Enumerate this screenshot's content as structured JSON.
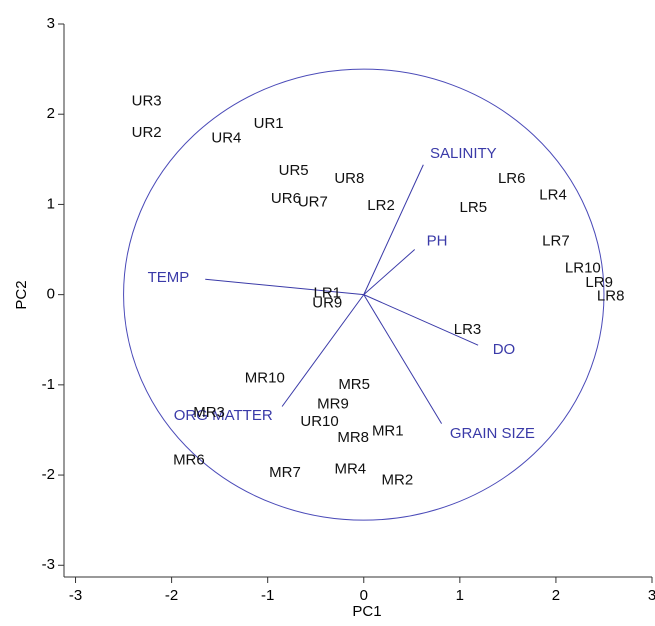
{
  "chart_data": {
    "type": "biplot",
    "xlabel": "PC1",
    "ylabel": "PC2",
    "xlim": [
      -3.12,
      3.0
    ],
    "ylim": [
      -3.13,
      3.0
    ],
    "xticks": [
      -3,
      -2,
      -1,
      0,
      1,
      2,
      3
    ],
    "yticks": [
      -3,
      -2,
      -1,
      0,
      1,
      2,
      3
    ],
    "point_color": "#111111",
    "vector_color": "#3a3aa8",
    "circle_color": "#4a4ab8",
    "circle_radius": 2.5,
    "points": [
      {
        "label": "UR3",
        "x": -2.26,
        "y": 2.14
      },
      {
        "label": "UR2",
        "x": -2.26,
        "y": 1.79
      },
      {
        "label": "UR4",
        "x": -1.43,
        "y": 1.73
      },
      {
        "label": "UR1",
        "x": -0.99,
        "y": 1.89
      },
      {
        "label": "UR5",
        "x": -0.73,
        "y": 1.37
      },
      {
        "label": "UR8",
        "x": -0.15,
        "y": 1.28
      },
      {
        "label": "UR6",
        "x": -0.81,
        "y": 1.06
      },
      {
        "label": "UR7",
        "x": -0.53,
        "y": 1.02
      },
      {
        "label": "LR2",
        "x": 0.18,
        "y": 0.98
      },
      {
        "label": "LR6",
        "x": 1.54,
        "y": 1.28
      },
      {
        "label": "LR4",
        "x": 1.97,
        "y": 1.1
      },
      {
        "label": "LR5",
        "x": 1.14,
        "y": 0.96
      },
      {
        "label": "LR7",
        "x": 2.0,
        "y": 0.59
      },
      {
        "label": "LR10",
        "x": 2.28,
        "y": 0.29
      },
      {
        "label": "LR9",
        "x": 2.45,
        "y": 0.13
      },
      {
        "label": "LR8",
        "x": 2.57,
        "y": -0.02
      },
      {
        "label": "LR1",
        "x": -0.38,
        "y": 0.01
      },
      {
        "label": "UR9",
        "x": -0.38,
        "y": -0.1
      },
      {
        "label": "LR3",
        "x": 1.08,
        "y": -0.39
      },
      {
        "label": "MR10",
        "x": -1.03,
        "y": -0.93
      },
      {
        "label": "MR5",
        "x": -0.1,
        "y": -1.0
      },
      {
        "label": "MR9",
        "x": -0.32,
        "y": -1.22
      },
      {
        "label": "MR3",
        "x": -1.61,
        "y": -1.31
      },
      {
        "label": "UR10",
        "x": -0.46,
        "y": -1.41
      },
      {
        "label": "MR8",
        "x": -0.11,
        "y": -1.59
      },
      {
        "label": "MR1",
        "x": 0.25,
        "y": -1.52
      },
      {
        "label": "MR6",
        "x": -1.82,
        "y": -1.84
      },
      {
        "label": "MR7",
        "x": -0.82,
        "y": -1.98
      },
      {
        "label": "MR4",
        "x": -0.14,
        "y": -1.94
      },
      {
        "label": "MR2",
        "x": 0.35,
        "y": -2.06
      }
    ],
    "vectors": [
      {
        "label": "SALINITY",
        "x": 0.62,
        "y": 1.44
      },
      {
        "label": "PH",
        "x": 0.53,
        "y": 0.5
      },
      {
        "label": "TEMP",
        "x": -1.65,
        "y": 0.17
      },
      {
        "label": "DO",
        "x": 1.19,
        "y": -0.56
      },
      {
        "label": "GRAIN SIZE",
        "x": 0.81,
        "y": -1.43
      },
      {
        "label": "ORG MATTER",
        "x": -0.85,
        "y": -1.24
      }
    ]
  }
}
